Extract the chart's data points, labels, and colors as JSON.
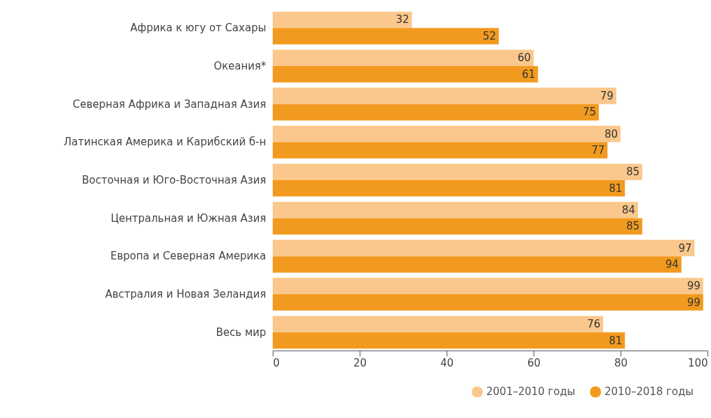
{
  "chart_data": {
    "type": "bar",
    "orientation": "horizontal",
    "categories": [
      "Африка к югу от Сахары",
      "Океания*",
      "Северная Африка и Западная Азия",
      "Латинская Америка и Карибский б-н",
      "Восточная и Юго-Восточная Азия",
      "Центральная и Южная Азия",
      "Европа и Северная Америка",
      "Австралия и Новая Зеландия",
      "Весь мир"
    ],
    "series": [
      {
        "name": "2001–2010 годы",
        "color": "#fac88c",
        "values": [
          32,
          60,
          79,
          80,
          85,
          84,
          97,
          99,
          76
        ]
      },
      {
        "name": "2010–2018 годы",
        "color": "#f29a1f",
        "values": [
          52,
          61,
          75,
          77,
          81,
          85,
          94,
          99,
          81
        ]
      }
    ],
    "xlim": [
      0,
      100
    ],
    "xticks": [
      0,
      20,
      40,
      60,
      80,
      100
    ],
    "grid": false,
    "legend": "bottom right",
    "data_labels": true
  }
}
